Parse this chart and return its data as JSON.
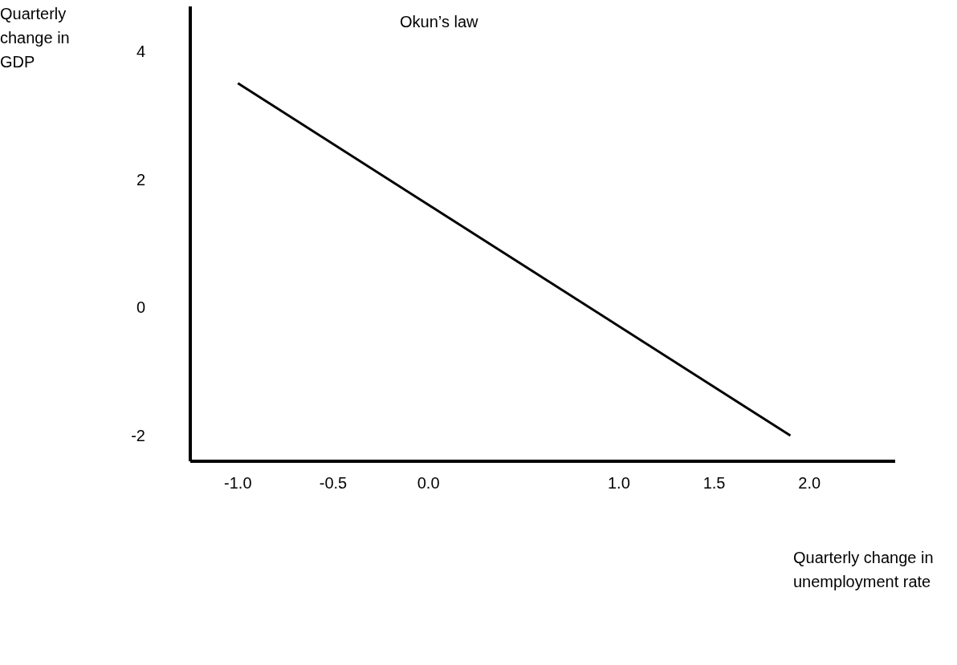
{
  "chart_data": {
    "type": "line",
    "title": "Okun’s law",
    "xlabel": "Quarterly change in unemployment rate",
    "ylabel": "Quarterly change in GDP",
    "x": [
      -1.0,
      1.9
    ],
    "series": [
      {
        "color": "#000000",
        "values": [
          3.5,
          -2
        ]
      }
    ],
    "xlim": [
      -1.25,
      2.45
    ],
    "xticks": [
      {
        "value": -1,
        "label": "-1.0"
      },
      {
        "value": -0.5,
        "label": "-0.5"
      },
      {
        "value": 0,
        "label": "0.0"
      },
      {
        "value": 1,
        "label": "1.0"
      },
      {
        "value": 1.5,
        "label": "1.5"
      },
      {
        "value": 2,
        "label": "2.0"
      }
    ],
    "ylim": [
      -2.4,
      4.7
    ],
    "yticks": [
      -2,
      0,
      2,
      4
    ],
    "grid": false,
    "legend": false,
    "marker": "none",
    "line_style": "solid"
  }
}
